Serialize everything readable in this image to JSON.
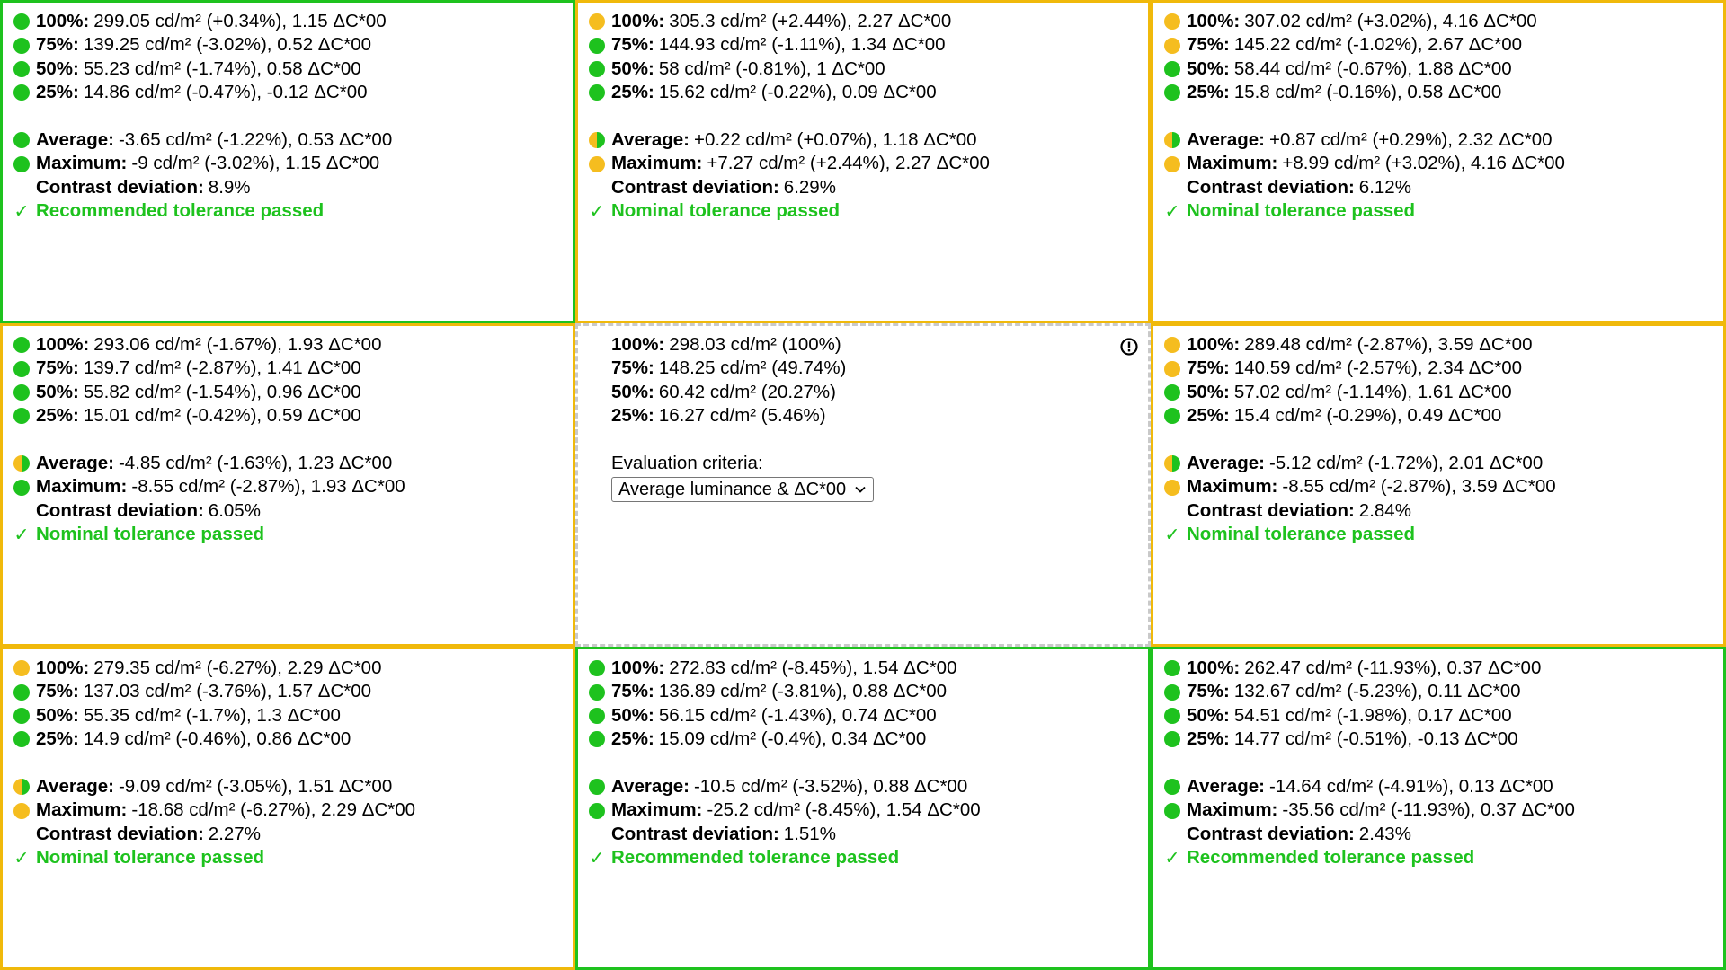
{
  "colors": {
    "green": "#1ec21e",
    "yellow": "#f0b90b",
    "dot_yellow": "#f5bd1f",
    "dashed": "#c9c9c9"
  },
  "labels": {
    "average": "Average:",
    "maximum": "Maximum:",
    "contrast": "Contrast deviation:"
  },
  "cells": [
    {
      "id": "top-left",
      "border": "green",
      "rows": [
        {
          "dot": "green",
          "label": "100%:",
          "text": "299.05 cd/m² (+0.34%), 1.15 ΔC*00"
        },
        {
          "dot": "green",
          "label": "75%:",
          "text": "139.25 cd/m² (-3.02%), 0.52 ΔC*00"
        },
        {
          "dot": "green",
          "label": "50%:",
          "text": "55.23 cd/m² (-1.74%), 0.58 ΔC*00"
        },
        {
          "dot": "green",
          "label": "25%:",
          "text": "14.86 cd/m² (-0.47%), -0.12 ΔC*00"
        }
      ],
      "average": {
        "dot": "green",
        "text": "-3.65 cd/m² (-1.22%), 0.53 ΔC*00"
      },
      "maximum": {
        "dot": "green",
        "text": "-9 cd/m² (-3.02%), 1.15 ΔC*00"
      },
      "contrast": "8.9%",
      "result": "Recommended tolerance passed"
    },
    {
      "id": "top-center",
      "border": "yellow",
      "rows": [
        {
          "dot": "yellow",
          "label": "100%:",
          "text": "305.3 cd/m² (+2.44%), 2.27 ΔC*00"
        },
        {
          "dot": "green",
          "label": "75%:",
          "text": "144.93 cd/m² (-1.11%), 1.34 ΔC*00"
        },
        {
          "dot": "green",
          "label": "50%:",
          "text": "58 cd/m² (-0.81%), 1 ΔC*00"
        },
        {
          "dot": "green",
          "label": "25%:",
          "text": "15.62 cd/m² (-0.22%), 0.09 ΔC*00"
        }
      ],
      "average": {
        "dot": "half",
        "text": "+0.22 cd/m² (+0.07%), 1.18 ΔC*00"
      },
      "maximum": {
        "dot": "yellow",
        "text": "+7.27 cd/m² (+2.44%), 2.27 ΔC*00"
      },
      "contrast": "6.29%",
      "result": "Nominal tolerance passed"
    },
    {
      "id": "top-right",
      "border": "yellow",
      "rows": [
        {
          "dot": "yellow",
          "label": "100%:",
          "text": "307.02 cd/m² (+3.02%), 4.16 ΔC*00"
        },
        {
          "dot": "yellow",
          "label": "75%:",
          "text": "145.22 cd/m² (-1.02%), 2.67 ΔC*00"
        },
        {
          "dot": "green",
          "label": "50%:",
          "text": "58.44 cd/m² (-0.67%), 1.88 ΔC*00"
        },
        {
          "dot": "green",
          "label": "25%:",
          "text": "15.8 cd/m² (-0.16%), 0.58 ΔC*00"
        }
      ],
      "average": {
        "dot": "half",
        "text": "+0.87 cd/m² (+0.29%), 2.32 ΔC*00"
      },
      "maximum": {
        "dot": "yellow",
        "text": "+8.99 cd/m² (+3.02%), 4.16 ΔC*00"
      },
      "contrast": "6.12%",
      "result": "Nominal tolerance passed"
    },
    {
      "id": "middle-left",
      "border": "yellow",
      "rows": [
        {
          "dot": "green",
          "label": "100%:",
          "text": "293.06 cd/m² (-1.67%), 1.93 ΔC*00"
        },
        {
          "dot": "green",
          "label": "75%:",
          "text": "139.7 cd/m² (-2.87%), 1.41 ΔC*00"
        },
        {
          "dot": "green",
          "label": "50%:",
          "text": "55.82 cd/m² (-1.54%), 0.96 ΔC*00"
        },
        {
          "dot": "green",
          "label": "25%:",
          "text": "15.01 cd/m² (-0.42%), 0.59 ΔC*00"
        }
      ],
      "average": {
        "dot": "half",
        "text": "-4.85 cd/m² (-1.63%), 1.23 ΔC*00"
      },
      "maximum": {
        "dot": "green",
        "text": "-8.55 cd/m² (-2.87%), 1.93 ΔC*00"
      },
      "contrast": "6.05%",
      "result": "Nominal tolerance passed"
    },
    {
      "id": "center",
      "border": "center",
      "rows": [
        {
          "dot": "none",
          "label": "100%:",
          "text": "298.03 cd/m² (100%)"
        },
        {
          "dot": "none",
          "label": "75%:",
          "text": "148.25 cd/m² (49.74%)"
        },
        {
          "dot": "none",
          "label": "50%:",
          "text": "60.42 cd/m² (20.27%)"
        },
        {
          "dot": "none",
          "label": "25%:",
          "text": "16.27 cd/m² (5.46%)"
        }
      ],
      "criteria_label": "Evaluation criteria:",
      "criteria_value": "Average luminance & ΔC*00"
    },
    {
      "id": "middle-right",
      "border": "yellow",
      "rows": [
        {
          "dot": "yellow",
          "label": "100%:",
          "text": "289.48 cd/m² (-2.87%), 3.59 ΔC*00"
        },
        {
          "dot": "yellow",
          "label": "75%:",
          "text": "140.59 cd/m² (-2.57%), 2.34 ΔC*00"
        },
        {
          "dot": "green",
          "label": "50%:",
          "text": "57.02 cd/m² (-1.14%), 1.61 ΔC*00"
        },
        {
          "dot": "green",
          "label": "25%:",
          "text": "15.4 cd/m² (-0.29%), 0.49 ΔC*00"
        }
      ],
      "average": {
        "dot": "half",
        "text": "-5.12 cd/m² (-1.72%), 2.01 ΔC*00"
      },
      "maximum": {
        "dot": "yellow",
        "text": "-8.55 cd/m² (-2.87%), 3.59 ΔC*00"
      },
      "contrast": "2.84%",
      "result": "Nominal tolerance passed"
    },
    {
      "id": "bottom-left",
      "border": "yellow",
      "rows": [
        {
          "dot": "yellow",
          "label": "100%:",
          "text": "279.35 cd/m² (-6.27%), 2.29 ΔC*00"
        },
        {
          "dot": "green",
          "label": "75%:",
          "text": "137.03 cd/m² (-3.76%), 1.57 ΔC*00"
        },
        {
          "dot": "green",
          "label": "50%:",
          "text": "55.35 cd/m² (-1.7%), 1.3 ΔC*00"
        },
        {
          "dot": "green",
          "label": "25%:",
          "text": "14.9 cd/m² (-0.46%), 0.86 ΔC*00"
        }
      ],
      "average": {
        "dot": "half",
        "text": "-9.09 cd/m² (-3.05%), 1.51 ΔC*00"
      },
      "maximum": {
        "dot": "yellow",
        "text": "-18.68 cd/m² (-6.27%), 2.29 ΔC*00"
      },
      "contrast": "2.27%",
      "result": "Nominal tolerance passed"
    },
    {
      "id": "bottom-center",
      "border": "green",
      "rows": [
        {
          "dot": "green",
          "label": "100%:",
          "text": "272.83 cd/m² (-8.45%), 1.54 ΔC*00"
        },
        {
          "dot": "green",
          "label": "75%:",
          "text": "136.89 cd/m² (-3.81%), 0.88 ΔC*00"
        },
        {
          "dot": "green",
          "label": "50%:",
          "text": "56.15 cd/m² (-1.43%), 0.74 ΔC*00"
        },
        {
          "dot": "green",
          "label": "25%:",
          "text": "15.09 cd/m² (-0.4%), 0.34 ΔC*00"
        }
      ],
      "average": {
        "dot": "green",
        "text": "-10.5 cd/m² (-3.52%), 0.88 ΔC*00"
      },
      "maximum": {
        "dot": "green",
        "text": "-25.2 cd/m² (-8.45%), 1.54 ΔC*00"
      },
      "contrast": "1.51%",
      "result": "Recommended tolerance passed"
    },
    {
      "id": "bottom-right",
      "border": "green",
      "rows": [
        {
          "dot": "green",
          "label": "100%:",
          "text": "262.47 cd/m² (-11.93%), 0.37 ΔC*00"
        },
        {
          "dot": "green",
          "label": "75%:",
          "text": "132.67 cd/m² (-5.23%), 0.11 ΔC*00"
        },
        {
          "dot": "green",
          "label": "50%:",
          "text": "54.51 cd/m² (-1.98%), 0.17 ΔC*00"
        },
        {
          "dot": "green",
          "label": "25%:",
          "text": "14.77 cd/m² (-0.51%), -0.13 ΔC*00"
        }
      ],
      "average": {
        "dot": "green",
        "text": "-14.64 cd/m² (-4.91%), 0.13 ΔC*00"
      },
      "maximum": {
        "dot": "green",
        "text": "-35.56 cd/m² (-11.93%), 0.37 ΔC*00"
      },
      "contrast": "2.43%",
      "result": "Recommended tolerance passed"
    }
  ]
}
